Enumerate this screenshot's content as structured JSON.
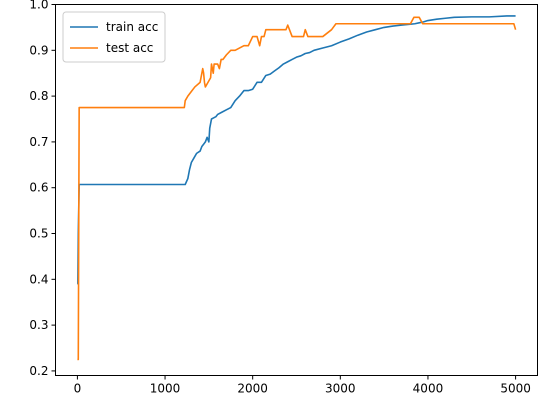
{
  "chart_data": {
    "type": "line",
    "title": "",
    "xlabel": "",
    "ylabel": "",
    "xlim": [
      -250,
      5250
    ],
    "ylim": [
      0.19,
      1.0
    ],
    "x_ticks": [
      0,
      1000,
      2000,
      3000,
      4000,
      5000
    ],
    "y_ticks": [
      0.2,
      0.3,
      0.4,
      0.5,
      0.6,
      0.7,
      0.8,
      0.9,
      1.0
    ],
    "x_tick_labels": [
      "0",
      "1000",
      "2000",
      "3000",
      "4000",
      "5000"
    ],
    "y_tick_labels": [
      "0.2",
      "0.3",
      "0.4",
      "0.5",
      "0.6",
      "0.7",
      "0.8",
      "0.9",
      "1.0"
    ],
    "grid": false,
    "legend_position": "top-left",
    "series": [
      {
        "name": "train acc",
        "color": "#1f77b4",
        "x": [
          0,
          5,
          10,
          20,
          50,
          1200,
          1230,
          1260,
          1280,
          1300,
          1330,
          1360,
          1400,
          1420,
          1440,
          1460,
          1480,
          1500,
          1510,
          1530,
          1550,
          1580,
          1600,
          1650,
          1700,
          1750,
          1800,
          1850,
          1900,
          1950,
          2000,
          2050,
          2100,
          2150,
          2200,
          2250,
          2300,
          2350,
          2400,
          2450,
          2500,
          2550,
          2600,
          2650,
          2700,
          2800,
          2900,
          3000,
          3100,
          3200,
          3300,
          3400,
          3500,
          3600,
          3700,
          3800,
          3850,
          3900,
          3950,
          4000,
          4100,
          4200,
          4300,
          4500,
          4700,
          4900,
          5000
        ],
        "y": [
          0.39,
          0.39,
          0.5,
          0.607,
          0.607,
          0.607,
          0.607,
          0.62,
          0.64,
          0.655,
          0.665,
          0.675,
          0.68,
          0.69,
          0.695,
          0.7,
          0.71,
          0.7,
          0.73,
          0.75,
          0.752,
          0.755,
          0.76,
          0.765,
          0.77,
          0.775,
          0.79,
          0.8,
          0.812,
          0.812,
          0.815,
          0.83,
          0.83,
          0.845,
          0.848,
          0.855,
          0.862,
          0.87,
          0.875,
          0.88,
          0.885,
          0.888,
          0.893,
          0.895,
          0.9,
          0.905,
          0.91,
          0.918,
          0.925,
          0.933,
          0.94,
          0.945,
          0.95,
          0.953,
          0.955,
          0.957,
          0.958,
          0.96,
          0.962,
          0.965,
          0.968,
          0.97,
          0.972,
          0.973,
          0.973,
          0.975,
          0.975
        ]
      },
      {
        "name": "test acc",
        "color": "#ff7f0e",
        "x": [
          0,
          10,
          20,
          1220,
          1230,
          1260,
          1300,
          1340,
          1400,
          1410,
          1430,
          1440,
          1450,
          1460,
          1490,
          1520,
          1530,
          1550,
          1560,
          1600,
          1620,
          1640,
          1660,
          1700,
          1750,
          1800,
          1900,
          1950,
          2000,
          2050,
          2080,
          2100,
          2130,
          2150,
          2200,
          2300,
          2380,
          2400,
          2420,
          2450,
          2500,
          2580,
          2600,
          2630,
          2650,
          2700,
          2800,
          2900,
          2950,
          3000,
          3200,
          3400,
          3600,
          3800,
          3840,
          3900,
          3940,
          4000,
          4200,
          4400,
          4600,
          4800,
          4980,
          5000
        ],
        "y": [
          0.225,
          0.225,
          0.775,
          0.775,
          0.79,
          0.8,
          0.81,
          0.82,
          0.83,
          0.84,
          0.86,
          0.85,
          0.83,
          0.82,
          0.83,
          0.84,
          0.87,
          0.85,
          0.87,
          0.87,
          0.86,
          0.88,
          0.88,
          0.89,
          0.9,
          0.9,
          0.91,
          0.91,
          0.93,
          0.93,
          0.91,
          0.93,
          0.93,
          0.945,
          0.945,
          0.945,
          0.945,
          0.955,
          0.945,
          0.93,
          0.93,
          0.93,
          0.945,
          0.93,
          0.93,
          0.93,
          0.93,
          0.945,
          0.958,
          0.958,
          0.958,
          0.958,
          0.958,
          0.958,
          0.972,
          0.972,
          0.958,
          0.958,
          0.958,
          0.958,
          0.958,
          0.958,
          0.958,
          0.945
        ]
      }
    ]
  }
}
